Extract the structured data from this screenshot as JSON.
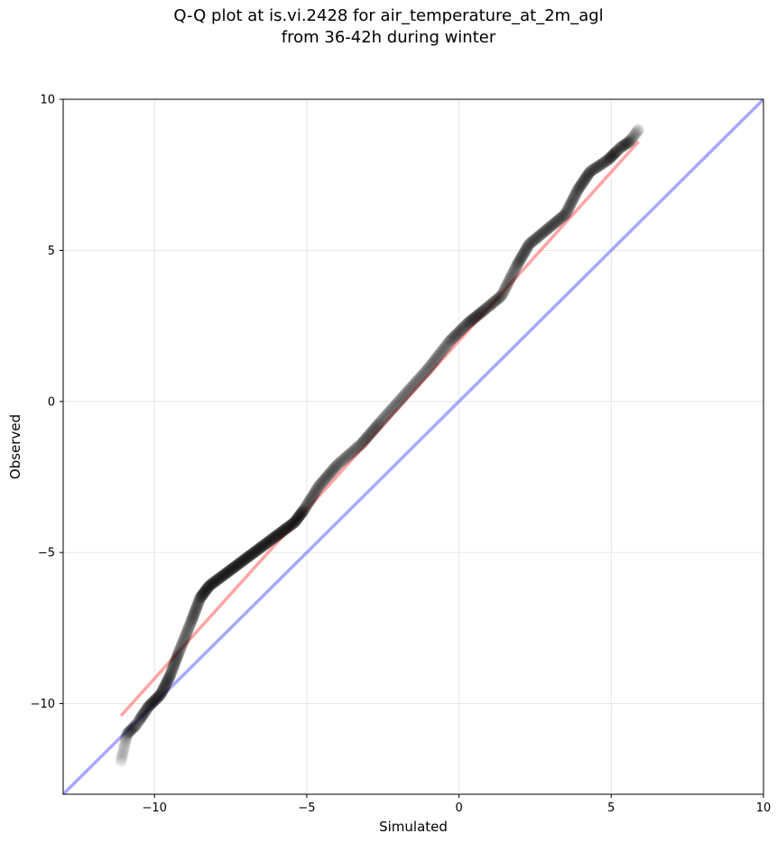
{
  "title_line1": "Q-Q plot at is.vi.2428 for air_temperature_at_2m_agl",
  "title_line2": "from 36-42h during winter",
  "chart_data": {
    "type": "scatter",
    "title": "Q-Q plot at is.vi.2428 for air_temperature_at_2m_agl\nfrom 36-42h during winter",
    "xlabel": "Simulated",
    "ylabel": "Observed",
    "xlim": [
      -13,
      10
    ],
    "ylim": [
      -13,
      10
    ],
    "xticks": [
      -10,
      -5,
      0,
      5,
      10
    ],
    "yticks": [
      -10,
      -5,
      0,
      5,
      10
    ],
    "xtick_labels": [
      "−10",
      "−5",
      "0",
      "5",
      "10"
    ],
    "ytick_labels": [
      "−10",
      "−5",
      "0",
      "5",
      "10"
    ],
    "grid": true,
    "colors": {
      "points": "#000000",
      "fit_line": "#ff5a5a",
      "identity_line": "#6e6eff"
    },
    "fit_line": {
      "x": [
        -11.1,
        5.9
      ],
      "y": [
        -10.4,
        8.6
      ]
    },
    "identity_line": {
      "x": [
        -13,
        10
      ],
      "y": [
        -13,
        10
      ]
    },
    "quantile_knots": {
      "x": [
        -11.1,
        -10.9,
        -10.6,
        -10.2,
        -9.8,
        -9.5,
        -9.2,
        -8.8,
        -8.5,
        -8.2,
        -7.8,
        -7.4,
        -7.0,
        -6.6,
        -6.2,
        -5.8,
        -5.4,
        -5.1,
        -4.6,
        -4.0,
        -3.2,
        -2.6,
        -1.8,
        -1.0,
        -0.3,
        0.3,
        0.8,
        1.4,
        1.9,
        2.3,
        2.9,
        3.5,
        3.9,
        4.3,
        4.9,
        5.3,
        5.6,
        5.9
      ],
      "y": [
        -11.9,
        -11.0,
        -10.7,
        -10.1,
        -9.7,
        -9.1,
        -8.3,
        -7.3,
        -6.5,
        -6.1,
        -5.8,
        -5.5,
        -5.2,
        -4.9,
        -4.6,
        -4.3,
        -4.0,
        -3.6,
        -2.8,
        -2.1,
        -1.4,
        -0.7,
        0.2,
        1.1,
        2.0,
        2.6,
        3.0,
        3.5,
        4.5,
        5.2,
        5.7,
        6.2,
        7.0,
        7.6,
        8.0,
        8.4,
        8.6,
        9.0
      ]
    },
    "n_points": 470
  }
}
